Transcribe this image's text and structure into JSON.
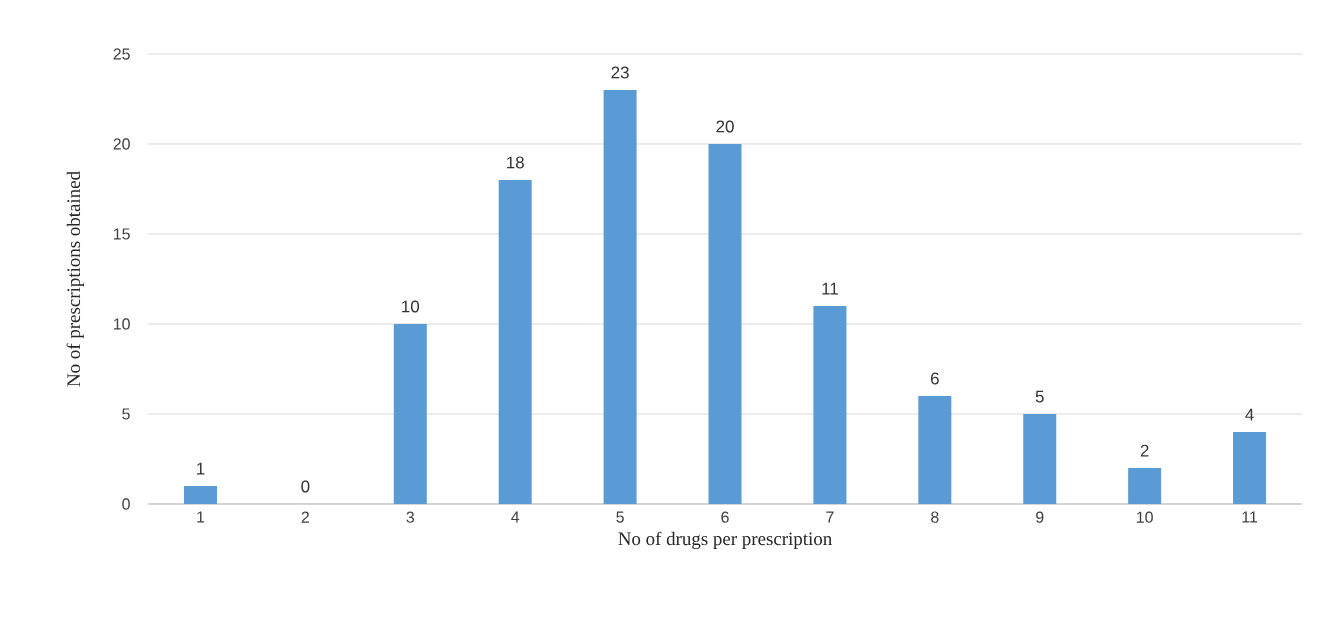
{
  "chart_data": {
    "type": "bar",
    "xlabel": "No of drugs per prescription",
    "ylabel": "No of prescriptions obtained",
    "categories": [
      "1",
      "2",
      "3",
      "4",
      "5",
      "6",
      "7",
      "8",
      "9",
      "10",
      "11"
    ],
    "values": [
      1,
      0,
      10,
      18,
      23,
      20,
      11,
      6,
      5,
      2,
      4
    ],
    "color": "#5b9bd5",
    "ylim": [
      0,
      25
    ],
    "yticks": [
      0,
      5,
      10,
      15,
      20,
      25
    ],
    "grid": "y",
    "data_labels": true
  }
}
